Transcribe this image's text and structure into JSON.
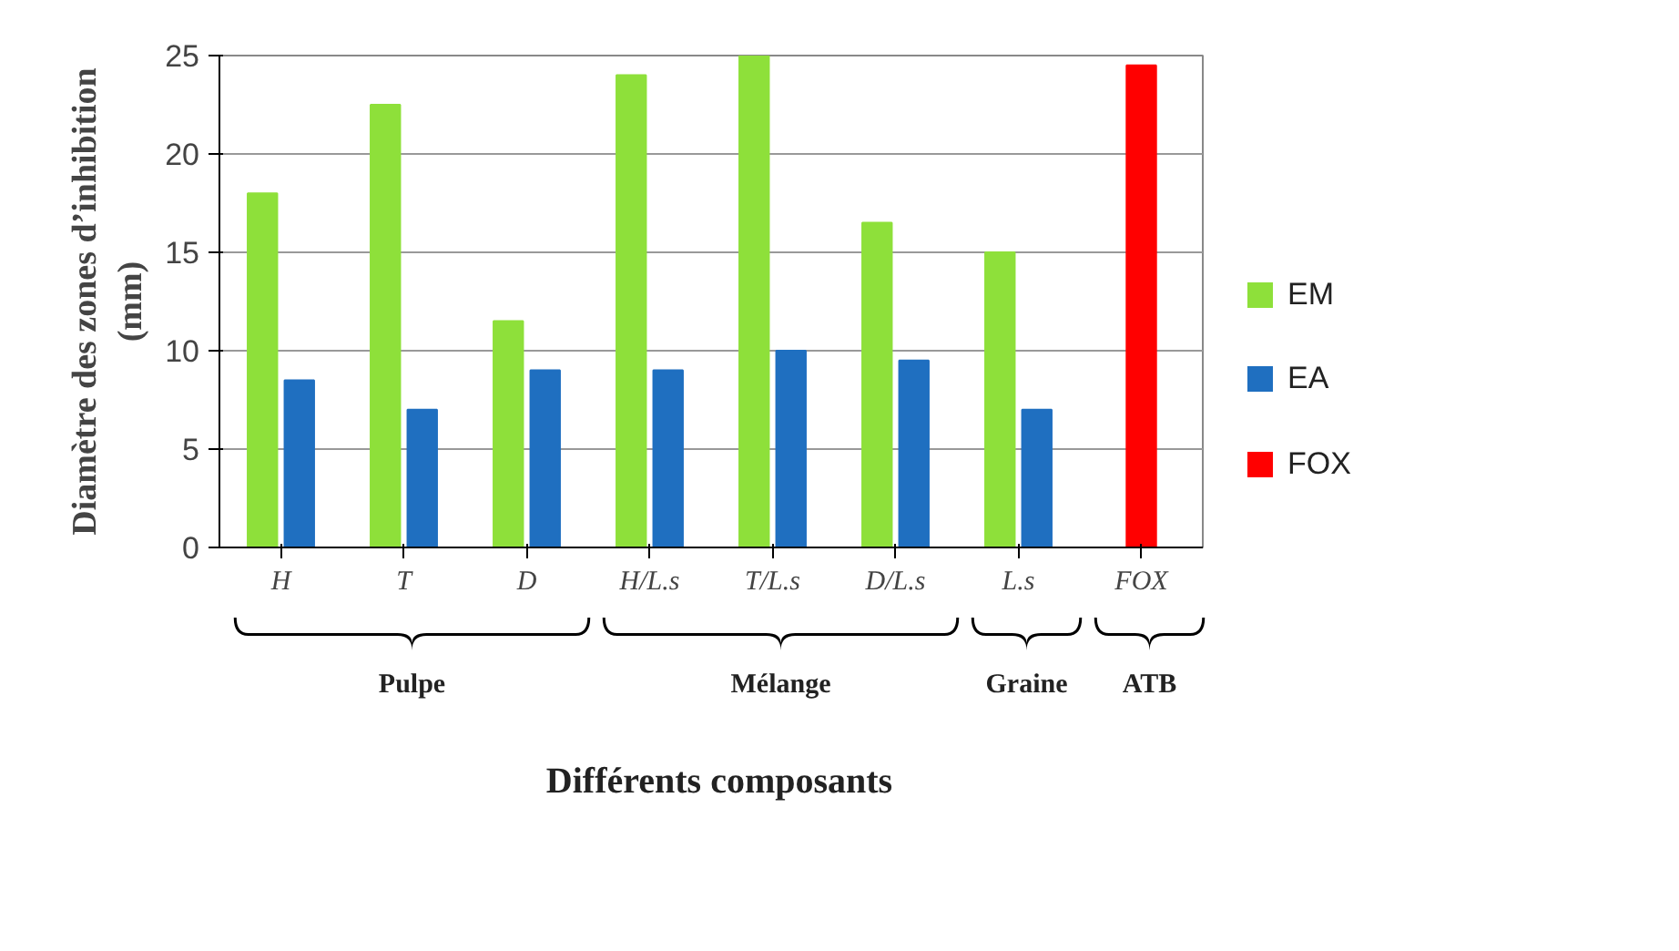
{
  "chart_data": {
    "type": "bar",
    "xlabel": "Différents composants",
    "ylabel": "Diamètre des zones d’inhibition\n(mm)",
    "categories": [
      "H",
      "T",
      "D",
      "H/L.s",
      "T/L.s",
      "D/L.s",
      "L.s",
      "FOX"
    ],
    "series": [
      {
        "name": "EM",
        "color": "#8ee03a",
        "values": [
          18,
          22.5,
          11.5,
          24,
          25,
          16.5,
          15,
          null
        ]
      },
      {
        "name": "EA",
        "color": "#1f6fc0",
        "values": [
          8.5,
          7,
          9,
          9,
          10,
          9.5,
          7,
          null
        ]
      },
      {
        "name": "FOX",
        "color": "#ff0000",
        "values": [
          null,
          null,
          null,
          null,
          null,
          null,
          null,
          24.5
        ]
      }
    ],
    "ylim": [
      0,
      25
    ],
    "yticks": [
      0,
      5,
      10,
      15,
      20,
      25
    ],
    "grid": "y",
    "legend": "right",
    "annotations": [
      "Pulpe",
      "Mélange",
      "Graine",
      "ATB"
    ]
  }
}
